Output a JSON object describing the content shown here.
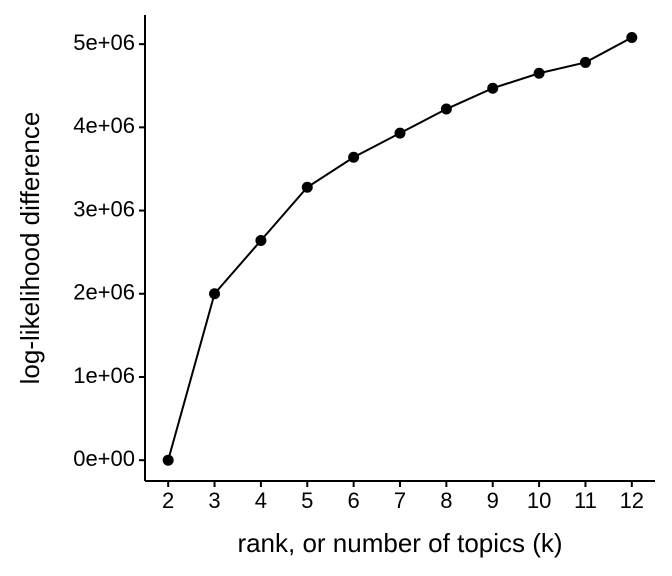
{
  "chart_data": {
    "type": "line",
    "x_label": "rank, or number of topics (k)",
    "y_label": "log-likelihood difference",
    "x": [
      2,
      3,
      4,
      5,
      6,
      7,
      8,
      9,
      10,
      11,
      12
    ],
    "series": [
      {
        "color": "#000000",
        "values": [
          0,
          2000000,
          2640000,
          3280000,
          3640000,
          3930000,
          4220000,
          4470000,
          4650000,
          4780000,
          5080000
        ]
      }
    ],
    "xlim": [
      1.5,
      12.5
    ],
    "xticks": [
      2,
      3,
      4,
      5,
      6,
      7,
      8,
      9,
      10,
      11,
      12
    ],
    "ylim": [
      -250000,
      5350000
    ],
    "yticks": [
      {
        "value": 0,
        "label": "0e+00"
      },
      {
        "value": 1000000,
        "label": "1e+06"
      },
      {
        "value": 2000000,
        "label": "2e+06"
      },
      {
        "value": 3000000,
        "label": "3e+06"
      },
      {
        "value": 4000000,
        "label": "4e+06"
      },
      {
        "value": 5000000,
        "label": "5e+06"
      }
    ],
    "grid": false
  }
}
